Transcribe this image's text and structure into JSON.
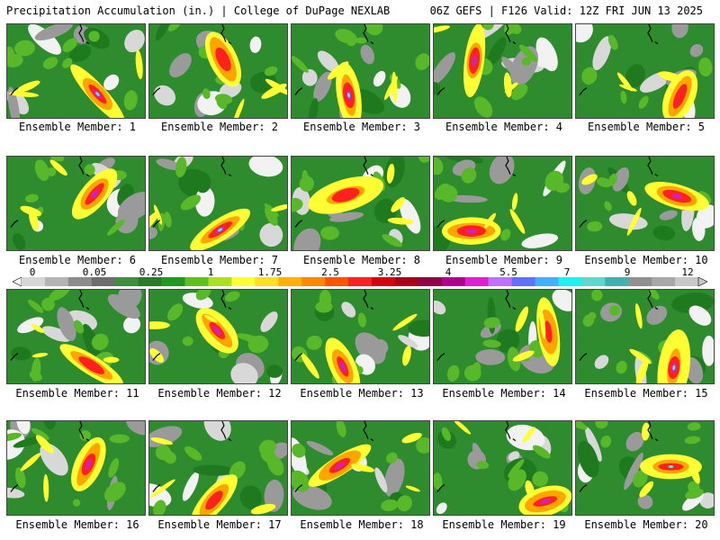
{
  "header": {
    "title_left": "Precipitation Accumulation (in.) | College of DuPage NEXLAB",
    "title_right": "06Z GEFS | F126 Valid: 12Z FRI JUN 13 2025"
  },
  "colorbar": {
    "tick_labels": [
      "0",
      "0.05",
      "0.25",
      "1",
      "1.75",
      "2.5",
      "3.25",
      "4",
      "5.5",
      "7",
      "9",
      "12"
    ],
    "colors": [
      "#d6d6d6",
      "#b4b4b4",
      "#8c8c8c",
      "#6e6e6e",
      "#3f8f3f",
      "#2a7a2a",
      "#1e9a1e",
      "#5fbf1f",
      "#aee020",
      "#ffff33",
      "#ffdd22",
      "#ffb000",
      "#ff8800",
      "#ff5500",
      "#ff2020",
      "#d40010",
      "#a80018",
      "#900048",
      "#b00090",
      "#e020d0",
      "#c070ff",
      "#6070ff",
      "#40b0ff",
      "#20f0f0",
      "#60d8d0",
      "#40b0b0",
      "#909090",
      "#a8a8a8",
      "#c8c8c8"
    ]
  },
  "palette": {
    "land": "#2e8b2e",
    "dark_green": "#1f7a1f",
    "light_green": "#58b82a",
    "gray": "#9a9a9a",
    "light_gray": "#d8d8d8",
    "white": "#f2f2f2",
    "yellow": "#ffff33",
    "orange": "#ffa500",
    "red": "#ff2020",
    "dark_red": "#b00018",
    "magenta": "#d020c0",
    "cyan": "#40f0f0",
    "coast": "#000000"
  },
  "members": [
    {
      "label": "Ensemble Member: 1"
    },
    {
      "label": "Ensemble Member: 2"
    },
    {
      "label": "Ensemble Member: 3"
    },
    {
      "label": "Ensemble Member: 4"
    },
    {
      "label": "Ensemble Member: 5"
    },
    {
      "label": "Ensemble Member: 6"
    },
    {
      "label": "Ensemble Member: 7"
    },
    {
      "label": "Ensemble Member: 8"
    },
    {
      "label": "Ensemble Member: 9"
    },
    {
      "label": "Ensemble Member: 10"
    },
    {
      "label": "Ensemble Member: 11"
    },
    {
      "label": "Ensemble Member: 12"
    },
    {
      "label": "Ensemble Member: 13"
    },
    {
      "label": "Ensemble Member: 14"
    },
    {
      "label": "Ensemble Member: 15"
    },
    {
      "label": "Ensemble Member: 16"
    },
    {
      "label": "Ensemble Member: 17"
    },
    {
      "label": "Ensemble Member: 18"
    },
    {
      "label": "Ensemble Member: 19"
    },
    {
      "label": "Ensemble Member: 20"
    }
  ]
}
